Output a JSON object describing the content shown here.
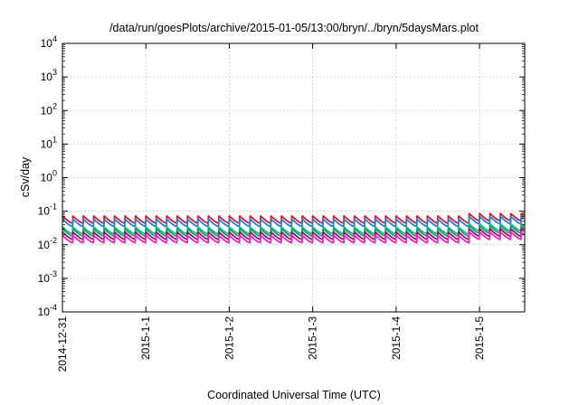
{
  "chart_data": {
    "type": "line",
    "title": "/data/run/goesPlots/archive/2015-01-05/13:00/bryn/../bryn/5daysMars.plot",
    "xlabel": "Coordinated Universal Time (UTC)",
    "ylabel": "cSv/day",
    "yscale": "log",
    "ylim": [
      0.0001,
      10000
    ],
    "xlim": [
      "2014-12-31 00:00",
      "2015-01-05 13:00"
    ],
    "x_ticks": [
      "2014-12-31",
      "2015-1-1",
      "2015-1-2",
      "2015-1-3",
      "2015-1-4",
      "2015-1-5"
    ],
    "y_ticks": [
      {
        "value": 0.0001,
        "base": "10",
        "exp": "-4"
      },
      {
        "value": 0.001,
        "base": "10",
        "exp": "-3"
      },
      {
        "value": 0.01,
        "base": "10",
        "exp": "-2"
      },
      {
        "value": 0.1,
        "base": "10",
        "exp": "-1"
      },
      {
        "value": 1,
        "base": "10",
        "exp": "0"
      },
      {
        "value": 10,
        "base": "10",
        "exp": "1"
      },
      {
        "value": 100,
        "base": "10",
        "exp": "2"
      },
      {
        "value": 1000,
        "base": "10",
        "exp": "3"
      },
      {
        "value": 10000,
        "base": "10",
        "exp": "4"
      }
    ],
    "grid": true,
    "cycle_hours": 3,
    "series": [
      {
        "color": "#d81b27",
        "peak": 0.072,
        "trough": 0.044,
        "late_peak": 0.085,
        "late_trough": 0.052
      },
      {
        "color": "#2f78d6",
        "peak": 0.058,
        "trough": 0.035,
        "late_peak": 0.07,
        "late_trough": 0.042
      },
      {
        "color": "#18b8b8",
        "peak": 0.034,
        "trough": 0.021,
        "late_peak": 0.042,
        "late_trough": 0.026
      },
      {
        "color": "#1aa84a",
        "peak": 0.03,
        "trough": 0.018,
        "late_peak": 0.037,
        "late_trough": 0.022
      },
      {
        "color": "#7a1f6b",
        "peak": 0.024,
        "trough": 0.0145,
        "late_peak": 0.03,
        "late_trough": 0.018
      },
      {
        "color": "#ff1fc8",
        "peak": 0.019,
        "trough": 0.0115,
        "late_peak": 0.024,
        "late_trough": 0.0145
      }
    ]
  }
}
